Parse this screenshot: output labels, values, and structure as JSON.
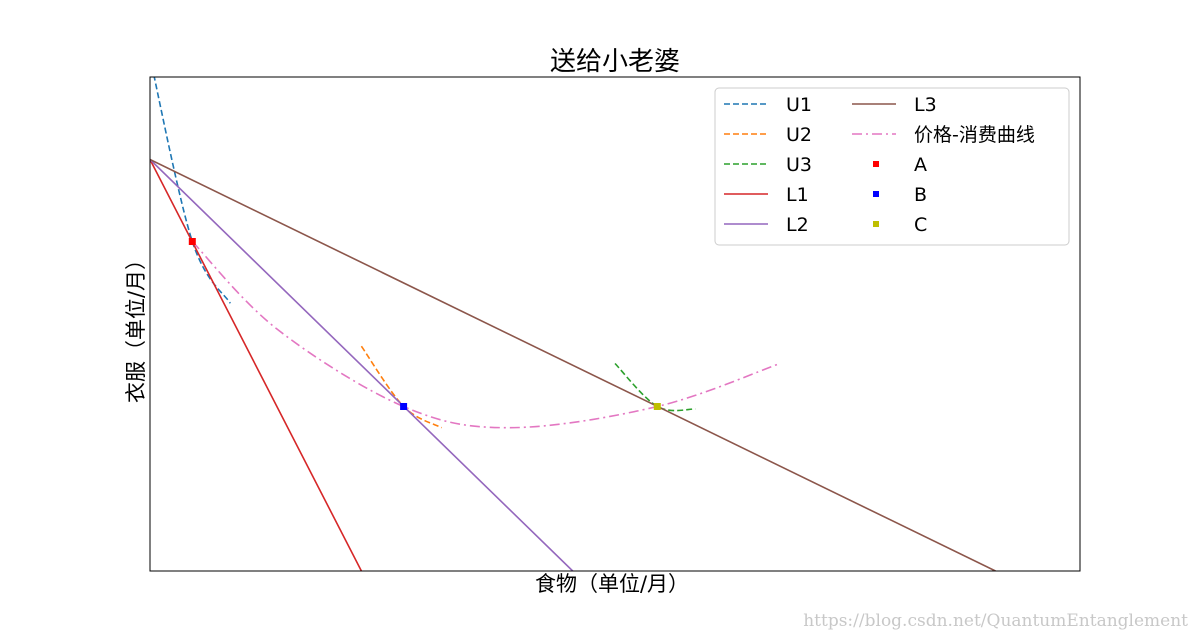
{
  "colors": {
    "U1": "#1f77b4",
    "U2": "#ff7f0e",
    "U3": "#2ca02c",
    "L1": "#d62728",
    "L2": "#9467bd",
    "L3": "#8c564b",
    "pcc": "#e377c2",
    "A": "#ff0000",
    "B": "#0000ff",
    "C": "#bfbf00"
  },
  "chart_data": {
    "type": "line",
    "title": "送给小老婆",
    "xlabel": "食物（单位/月）",
    "ylabel": "衣服（单位/月）",
    "xlim": [
      0,
      11
    ],
    "ylim": [
      0,
      10
    ],
    "grid": false,
    "ticks_visible": false,
    "legend": {
      "placement": "top-right",
      "columns": 2,
      "entries": [
        "U1",
        "U2",
        "U3",
        "L1",
        "L2",
        "L3",
        "价格-消费曲线",
        "A",
        "B",
        "C"
      ]
    },
    "series": [
      {
        "name": "U1",
        "style": "dashed",
        "x": [
          0,
          0.5,
          0.95
        ],
        "y": [
          10.4,
          6.67,
          5.42
        ]
      },
      {
        "name": "U2",
        "style": "dashed",
        "x": [
          2.5,
          3.0,
          3.45
        ],
        "y": [
          4.55,
          3.33,
          2.9
        ]
      },
      {
        "name": "U3",
        "style": "dashed",
        "x": [
          5.5,
          6.0,
          6.45
        ],
        "y": [
          4.2,
          3.33,
          3.28
        ]
      },
      {
        "name": "L1",
        "style": "solid",
        "x": [
          0,
          2.5
        ],
        "y": [
          8.33,
          0
        ]
      },
      {
        "name": "L2",
        "style": "solid",
        "x": [
          0,
          5.0
        ],
        "y": [
          8.33,
          0
        ]
      },
      {
        "name": "L3",
        "style": "solid",
        "x": [
          0,
          10.0
        ],
        "y": [
          8.33,
          0
        ]
      },
      {
        "name": "价格-消费曲线",
        "style": "dashdot",
        "x": [
          0.5,
          1.5,
          3.0,
          4.25,
          6.0,
          7.45
        ],
        "y": [
          6.67,
          4.9,
          3.33,
          2.9,
          3.33,
          4.2
        ]
      }
    ],
    "points": [
      {
        "name": "A",
        "x": 0.5,
        "y": 6.67
      },
      {
        "name": "B",
        "x": 3.0,
        "y": 3.33
      },
      {
        "name": "C",
        "x": 6.0,
        "y": 3.33
      }
    ]
  },
  "watermark": "https://blog.csdn.net/QuantumEntanglement"
}
